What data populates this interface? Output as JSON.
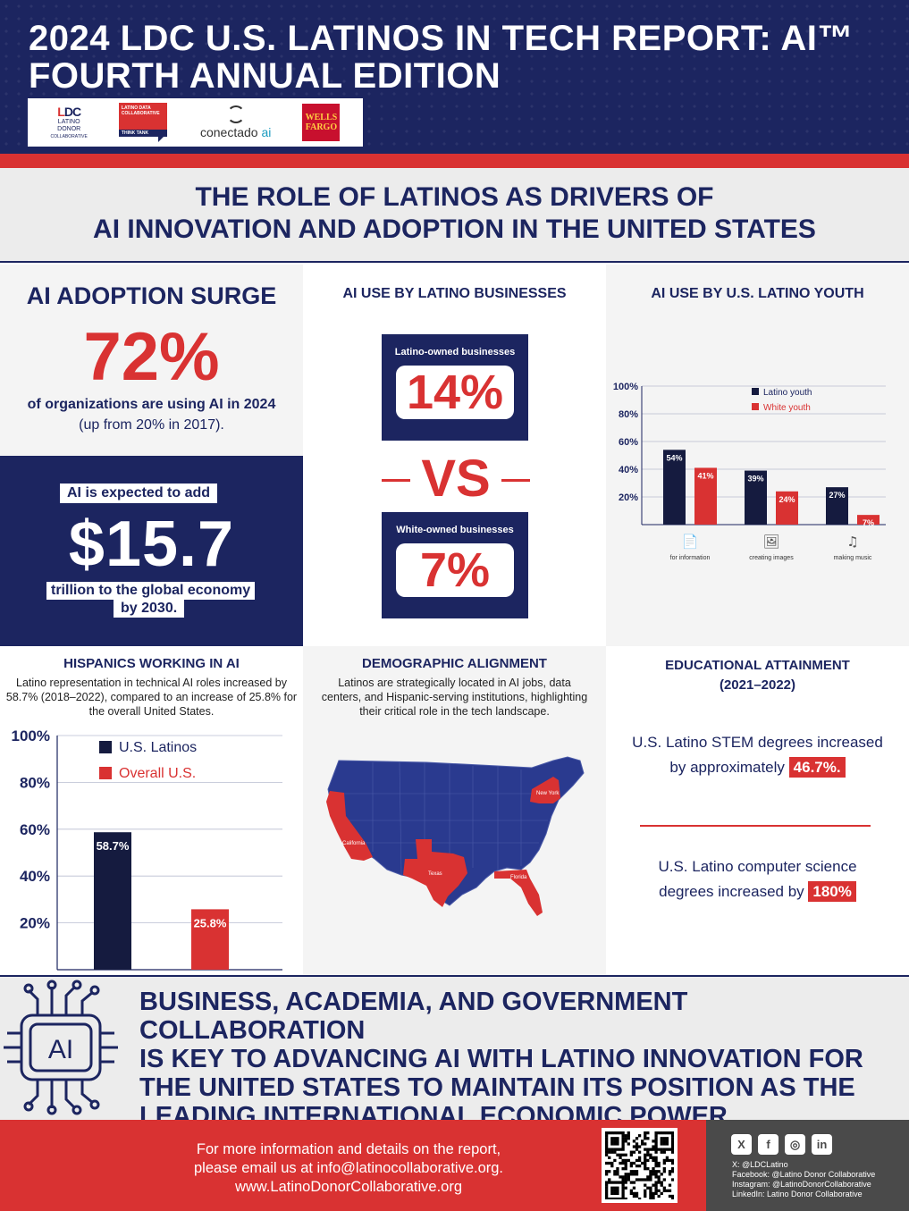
{
  "header": {
    "title_line1": "2024 LDC U.S. LATINOS IN TECH REPORT: AI™",
    "title_line2": "FOURTH ANNUAL EDITION",
    "logos": {
      "ldc": {
        "mark_l": "L",
        "mark_dc": "DC",
        "line1": "LATINO",
        "line2": "DONOR",
        "line3": "COLLABORATIVE"
      },
      "ldt": {
        "text": "LATINO DATA COLLABORATIVE",
        "bar": "THINK TANK"
      },
      "conectado": {
        "word": "conectado",
        "suffix": "ai"
      },
      "wellsfargo": {
        "line1": "WELLS",
        "line2": "FARGO"
      }
    }
  },
  "subtitle": {
    "line1": "THE ROLE OF LATINOS AS DRIVERS OF",
    "line2": "AI INNOVATION AND ADOPTION IN THE UNITED STATES"
  },
  "adoption": {
    "title": "AI ADOPTION SURGE",
    "stat": "72%",
    "line1": "of organizations are using AI in 2024",
    "line2": "(up from 20% in 2017)."
  },
  "economy": {
    "pre": "AI is expected to add",
    "stat": "$15.7",
    "post1": "trillion to the global economy",
    "post2": "by 2030."
  },
  "business": {
    "title": "AI USE BY LATINO BUSINESSES",
    "latino_label": "Latino-owned businesses",
    "latino_value": "14%",
    "vs": "VS",
    "white_label": "White-owned businesses",
    "white_value": "7%"
  },
  "youth": {
    "title": "AI USE BY U.S. LATINO YOUTH"
  },
  "hispanics": {
    "title": "HISPANICS WORKING IN AI",
    "desc": "Latino representation in technical AI roles increased by 58.7% (2018–2022), compared to an increase of 25.8% for the overall United States."
  },
  "demographic": {
    "title": "DEMOGRAPHIC ALIGNMENT",
    "desc": "Latinos are strategically located in AI jobs, data centers, and Hispanic-serving institutions, highlighting their critical role in the tech landscape.",
    "states": [
      "California",
      "Texas",
      "Florida",
      "New York"
    ]
  },
  "education": {
    "title_line1": "EDUCATIONAL ATTAINMENT",
    "title_line2": "(2021–2022)",
    "stem_line1": "U.S. Latino STEM degrees increased",
    "stem_line2": "by approximately",
    "stem_value": "46.7%.",
    "cs_line1": "U.S. Latino computer science",
    "cs_line2": "degrees increased by",
    "cs_value": "180%"
  },
  "cta": {
    "line1": "BUSINESS, ACADEMIA, AND GOVERNMENT COLLABORATION",
    "line2": "IS KEY TO ADVANCING AI WITH LATINO INNOVATION FOR",
    "line3": "THE UNITED STATES TO MAINTAIN ITS POSITION AS THE",
    "line4": "LEADING INTERNATIONAL ECONOMIC POWER.",
    "icon_text": "AI"
  },
  "footer": {
    "line1": "For more information and details on the report,",
    "line2": "please email us at  info@latinocollaborative.org.",
    "line3": "www.LatinoDonorCollaborative.org",
    "social_icons": [
      "x-icon",
      "facebook-icon",
      "instagram-icon",
      "linkedin-icon"
    ],
    "social_glyphs": [
      "X",
      "f",
      "◎",
      "in"
    ],
    "x": "X: @LDCLatino",
    "facebook": "Facebook: @Latino Donor Collaborative",
    "instagram": "Instagram: @LatinoDonorCollaborative",
    "linkedin": "LinkedIn: Latino Donor Collaborative"
  },
  "colors": {
    "navy": "#1c2560",
    "red": "#d93232",
    "dark_bar": "#151b3f",
    "light_gray": "#ececec"
  },
  "chart_data": [
    {
      "type": "bar",
      "id": "youth",
      "categories": [
        "for information",
        "creating images",
        "making music"
      ],
      "category_icons": [
        "document-icon",
        "image-icon",
        "music-note-icon"
      ],
      "series": [
        {
          "name": "Latino youth",
          "values": [
            54,
            39,
            27
          ],
          "labels": [
            "54%",
            "39%",
            "27%"
          ]
        },
        {
          "name": "White youth",
          "values": [
            41,
            24,
            7
          ],
          "labels": [
            "41%",
            "24%",
            "7%"
          ]
        }
      ],
      "ylim": [
        0,
        100
      ],
      "yticks": [
        "100%",
        "80%",
        "60%",
        "40%",
        "20%"
      ],
      "ytick_values": [
        100,
        80,
        60,
        40,
        20
      ],
      "grid": true,
      "legend": "top-right"
    },
    {
      "type": "bar",
      "id": "hispanics",
      "categories": [
        "U.S. Latinos",
        "Overall U.S."
      ],
      "values": [
        58.7,
        25.8
      ],
      "labels": [
        "58.7%",
        "25.8%"
      ],
      "series": [
        {
          "name": "U.S. Latinos"
        },
        {
          "name": "Overall U.S."
        }
      ],
      "ylim": [
        0,
        100
      ],
      "yticks": [
        "100%",
        "80%",
        "60%",
        "40%",
        "20%"
      ],
      "ytick_values": [
        100,
        80,
        60,
        40,
        20
      ],
      "grid": true,
      "legend": "top-left"
    }
  ]
}
